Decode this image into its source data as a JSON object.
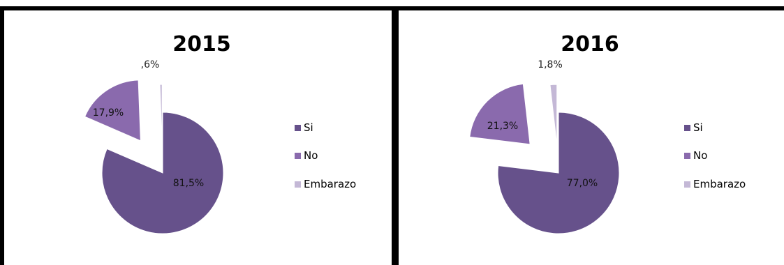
{
  "chart_data": [
    {
      "type": "pie",
      "title": "2015",
      "categories": [
        "Si",
        "No",
        "Embarazo"
      ],
      "values": [
        81.5,
        17.9,
        0.6
      ],
      "labels": [
        "81,5%",
        "17,9%",
        ",6%"
      ],
      "legend": "right",
      "colors": [
        "#66518b",
        "#8a6aad",
        "#c4b8d6"
      ]
    },
    {
      "type": "pie",
      "title": "2016",
      "categories": [
        "Si",
        "No",
        "Embarazo"
      ],
      "values": [
        77.0,
        21.3,
        1.8
      ],
      "labels": [
        "77,0%",
        "21,3%",
        "1,8%"
      ],
      "legend": "right",
      "colors": [
        "#66518b",
        "#8a6aad",
        "#c4b8d6"
      ]
    }
  ]
}
